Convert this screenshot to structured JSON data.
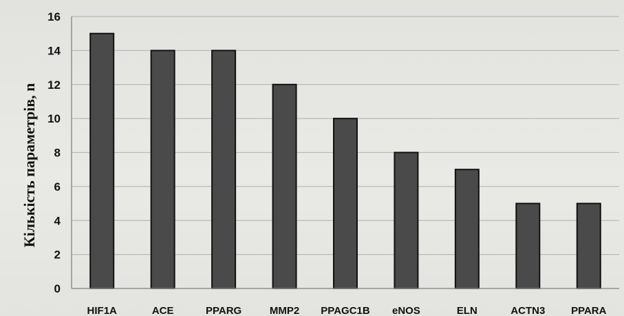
{
  "chart_data": {
    "type": "bar",
    "title": "",
    "xlabel": "",
    "ylabel": "Кількість параметрів, n",
    "categories": [
      "HIF1A",
      "ACE",
      "PPARG",
      "MMP2",
      "PPAGC1B",
      "eNOS",
      "ELN",
      "ACTN3",
      "PPARA"
    ],
    "values": [
      15,
      14,
      14,
      12,
      10,
      8,
      7,
      5,
      5
    ],
    "ylim": [
      0,
      16
    ],
    "yticks": [
      0,
      2,
      4,
      6,
      8,
      10,
      12,
      14,
      16
    ],
    "grid": true,
    "legend": "none",
    "colors": {
      "bar_fill": "#4a4a4a",
      "bar_stroke": "#111111",
      "grid": "#b9b9b6",
      "axis": "#8f8f8c"
    }
  }
}
